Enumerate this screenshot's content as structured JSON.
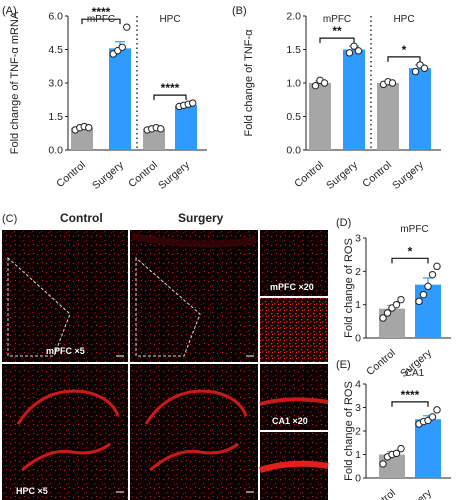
{
  "panels": {
    "A": "(A)",
    "B": "(B)",
    "C": "(C)",
    "D": "(D)",
    "E": "(E)"
  },
  "micrographs": {
    "col_control": "Control",
    "col_surgery": "Surgery",
    "label_mpfc5": "mPFC ×5",
    "label_hpc5": "HPC ×5",
    "label_mpfc20": "mPFC ×20",
    "label_ca1_20": "CA1 ×20"
  },
  "colors": {
    "control": "#a6a6a6",
    "surgery": "#2f9bff",
    "tissue_bg": "#0d0000",
    "signal": "#e0201c"
  },
  "chart_data": [
    {
      "id": "A",
      "type": "bar",
      "ylabel": "Fold change of TNF-α mRNA",
      "yticks": [
        "0.0",
        "1.5",
        "3.0",
        "4.5",
        "6.0"
      ],
      "ylim": [
        0,
        6
      ],
      "groups": [
        {
          "region": "mPFC",
          "categories": [
            "Control",
            "Surgery"
          ],
          "values": [
            1.0,
            4.55
          ],
          "sem": [
            0.05,
            0.3
          ],
          "points": [
            [
              0.9,
              1.0,
              1.05,
              1.0
            ],
            [
              4.3,
              4.45,
              4.6,
              5.5
            ]
          ],
          "sig": "****"
        },
        {
          "region": "HPC",
          "categories": [
            "Control",
            "Surgery"
          ],
          "values": [
            0.95,
            2.0
          ],
          "sem": [
            0.05,
            0.08
          ],
          "points": [
            [
              0.9,
              0.95,
              1.0,
              0.95
            ],
            [
              1.95,
              2.0,
              2.05,
              2.1
            ]
          ],
          "sig": "****"
        }
      ]
    },
    {
      "id": "B",
      "type": "bar",
      "ylabel": "Fold change of TNF-α",
      "yticks": [
        "0.0",
        "0.5",
        "1.0",
        "1.5",
        "2.0"
      ],
      "ylim": [
        0,
        2
      ],
      "groups": [
        {
          "region": "mPFC",
          "categories": [
            "Control",
            "Surgery"
          ],
          "values": [
            1.0,
            1.5
          ],
          "sem": [
            0.03,
            0.05
          ],
          "points": [
            [
              0.96,
              1.04,
              1.0
            ],
            [
              1.45,
              1.55,
              1.48
            ]
          ],
          "sig": "**"
        },
        {
          "region": "HPC",
          "categories": [
            "Control",
            "Surgery"
          ],
          "values": [
            1.0,
            1.22
          ],
          "sem": [
            0.02,
            0.05
          ],
          "points": [
            [
              0.98,
              1.02,
              1.0
            ],
            [
              1.17,
              1.27,
              1.22
            ]
          ],
          "sig": "*"
        }
      ]
    },
    {
      "id": "D",
      "type": "bar",
      "title": "mPFC",
      "ylabel": "Fold change of ROS",
      "yticks": [
        "0",
        "1",
        "2",
        "3"
      ],
      "ylim": [
        0,
        3
      ],
      "categories": [
        "Control",
        "Surgery"
      ],
      "values": [
        0.88,
        1.6
      ],
      "sem": [
        0.1,
        0.2
      ],
      "points": [
        [
          0.6,
          0.75,
          0.9,
          1.0,
          1.15
        ],
        [
          1.1,
          1.3,
          1.55,
          1.9,
          2.15
        ]
      ],
      "sig": "*"
    },
    {
      "id": "E",
      "type": "bar",
      "title": "CA1",
      "ylabel": "Fold change of ROS",
      "yticks": [
        "0",
        "1",
        "2",
        "3",
        "4"
      ],
      "ylim": [
        0,
        4
      ],
      "categories": [
        "Control",
        "Surgery"
      ],
      "values": [
        1.0,
        2.5
      ],
      "sem": [
        0.12,
        0.15
      ],
      "points": [
        [
          0.6,
          0.9,
          1.0,
          1.05,
          1.25
        ],
        [
          2.3,
          2.4,
          2.45,
          2.6,
          2.9
        ]
      ],
      "sig": "****"
    }
  ]
}
